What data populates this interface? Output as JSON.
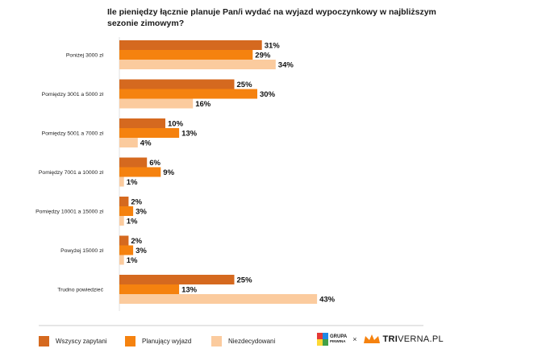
{
  "chart_data": {
    "type": "bar",
    "orientation": "horizontal",
    "title": "Ile pieniędzy łącznie planuje Pan/i wydać na wyjazd wypoczynkowy w najbliższym sezonie zimowym?",
    "categories": [
      "Poniżej 3000 zł",
      "Pomiędzy 3001 a 5000 zł",
      "Pomiędzy 5001 a 7000 zł",
      "Pomiędzy 7001 a 10000 zł",
      "Pomiędzy 10001 a 15000 zł",
      "Powyżej 15000 zł",
      "Trudno powiedzieć"
    ],
    "series": [
      {
        "name": "Wszyscy zapytani",
        "color": "#d5691f",
        "values": [
          31,
          25,
          10,
          6,
          2,
          2,
          25
        ],
        "labels": [
          "31%",
          "25%",
          "10%",
          "6%",
          "2%",
          "2%",
          "25%"
        ]
      },
      {
        "name": "Planujący wyjazd",
        "color": "#f5820f",
        "values": [
          29,
          30,
          13,
          9,
          3,
          3,
          13
        ],
        "labels": [
          "29%",
          "30%",
          "13%",
          "9%",
          "3%",
          "3%",
          "13%"
        ]
      },
      {
        "name": "Niezdecydowani",
        "color": "#fbcb9e",
        "values": [
          34,
          16,
          4,
          1,
          1,
          1,
          43
        ],
        "labels": [
          "34%",
          "16%",
          "4%",
          "1%",
          "1%",
          "1%",
          "43%"
        ]
      }
    ],
    "xlim": [
      0,
      45
    ],
    "unit": "%"
  },
  "legend": {
    "items": [
      "Wszyscy zapytani",
      "Planujący wyjazd",
      "Niezdecydowani"
    ]
  },
  "brand": {
    "grupa_line1": "GRUPA",
    "grupa_line2": "PINWINA",
    "separator": "×",
    "triverna_bold": "TRI",
    "triverna_rest": "VERNA.PL"
  }
}
